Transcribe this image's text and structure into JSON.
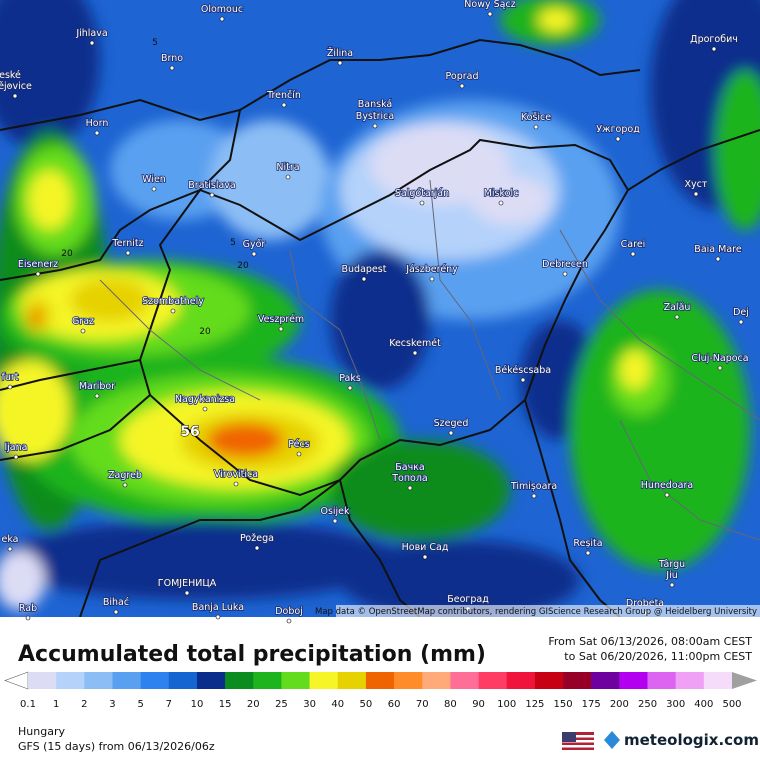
{
  "map": {
    "cities": [
      "Olomouc",
      "Nowy Sącz",
      "Jihlava",
      "Brno",
      "Žilina",
      "Poprad",
      "Дрогобич",
      "eské",
      "ějovice",
      "Trenčín",
      "Banská",
      "Bystrica",
      "Košice",
      "Ужгород",
      "Horn",
      "Nitra",
      "Salgótarján",
      "Miskolc",
      "Хуст",
      "Wien",
      "Bratislava",
      "Ternitz",
      "Győr",
      "Carei",
      "Baia Mare",
      "Eisenerz",
      "Budapest",
      "Jászberény",
      "Debrecen",
      "Szombathely",
      "Zalău",
      "Dej",
      "Graz",
      "Veszprém",
      "Kecskemét",
      "Cluj-Napoca",
      "furt",
      "Paks",
      "Békéscsaba",
      "Maribor",
      "Nagykanizsa",
      "Szeged",
      "ljana",
      "Pécs",
      "Бачка",
      "Топола",
      "Zagreb",
      "Virovitica",
      "Timișoara",
      "Hunedoara",
      "Osijek",
      "eka",
      "Požega",
      "Нови Сад",
      "Reșita",
      "Târgu",
      "Jiu",
      "ГОМЈЕНИЦА",
      "Bihać",
      "Banja Luka",
      "Doboj",
      "Београд",
      "Drobeta",
      "Rab"
    ],
    "contour_labels": [
      "5",
      "5",
      "20",
      "20",
      "20"
    ],
    "max_label": "56",
    "attribution": "Map data © OpenStreetMap contributors, rendering GIScience Research Group @ Heidelberg University"
  },
  "header": {
    "title": "Accumulated total precipitation (mm)",
    "from": "From Sat 06/13/2026, 08:00am CEST",
    "to": "to Sat 06/20/2026, 11:00pm CEST"
  },
  "legend": {
    "labels": [
      0.1,
      1,
      2,
      3,
      5,
      7,
      10,
      15,
      20,
      25,
      30,
      40,
      50,
      60,
      70,
      80,
      90,
      100,
      125,
      150,
      175,
      200,
      250,
      300,
      400,
      500
    ],
    "colors": [
      "#dcdcf5",
      "#b4d2fa",
      "#8cbef5",
      "#5aa0f0",
      "#2d82f0",
      "#1464d2",
      "#0a2d8c",
      "#0a8c1e",
      "#1eb41e",
      "#64dc1e",
      "#f5f528",
      "#e6d200",
      "#f06400",
      "#ff8c28",
      "#ffaa78",
      "#ff6e96",
      "#ff3c64",
      "#f0143c",
      "#c80014",
      "#960028",
      "#6e00a0",
      "#b400f0",
      "#dc64f0",
      "#f0a0f5",
      "#f5dcfa"
    ],
    "low_color": "#ffffff",
    "high_color": "#a0a0a0"
  },
  "footer": {
    "region": "Hungary",
    "model": "GFS (15 days) from 06/13/2026/06z",
    "brand": "meteologix.com"
  }
}
